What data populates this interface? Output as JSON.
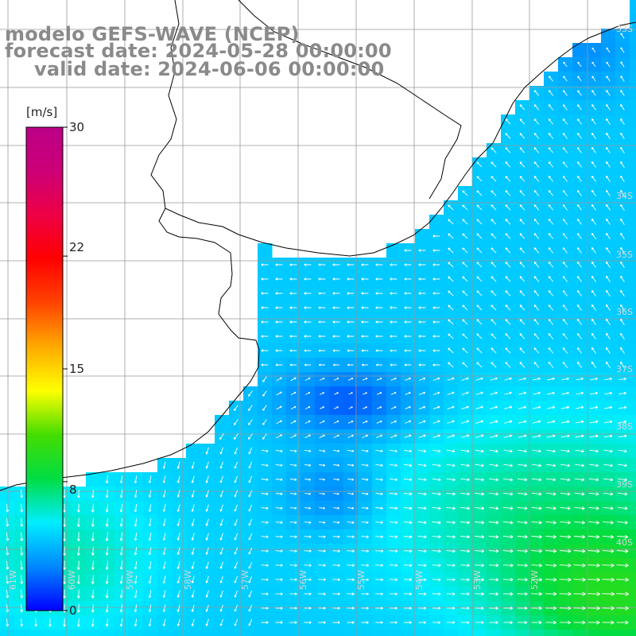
{
  "title": {
    "model": "modelo GEFS-WAVE (NCEP)",
    "forecast": "forecast date: 2024-05-28 00:00:00",
    "valid": "valid date: 2024-06-06 00:00:00"
  },
  "colorbar": {
    "unit": "[m/s]",
    "ticks": [
      "30",
      "22",
      "15",
      "8",
      "0"
    ],
    "tick_values": [
      30,
      22,
      15,
      8,
      0
    ],
    "min": 0,
    "max": 30,
    "stops": [
      "#0000ff",
      "#0088ff",
      "#00eeff",
      "#00dd44",
      "#44dd00",
      "#ffff00",
      "#ffaa00",
      "#ff4400",
      "#ff0000",
      "#ee0044",
      "#cc0077",
      "#bb0088"
    ]
  },
  "lat_labels": [
    "33S",
    "34S",
    "35S",
    "36S",
    "37S",
    "38S",
    "39S",
    "40S"
  ],
  "lon_labels": [
    "61W",
    "60W",
    "59W",
    "58W",
    "57W",
    "56W",
    "55W",
    "54W",
    "53W",
    "52W"
  ],
  "colors": {
    "land": "#ffffff",
    "coast": "#000000",
    "grid": "#999999",
    "arrow": "#ffffff",
    "title": "#8a8a8a"
  }
}
